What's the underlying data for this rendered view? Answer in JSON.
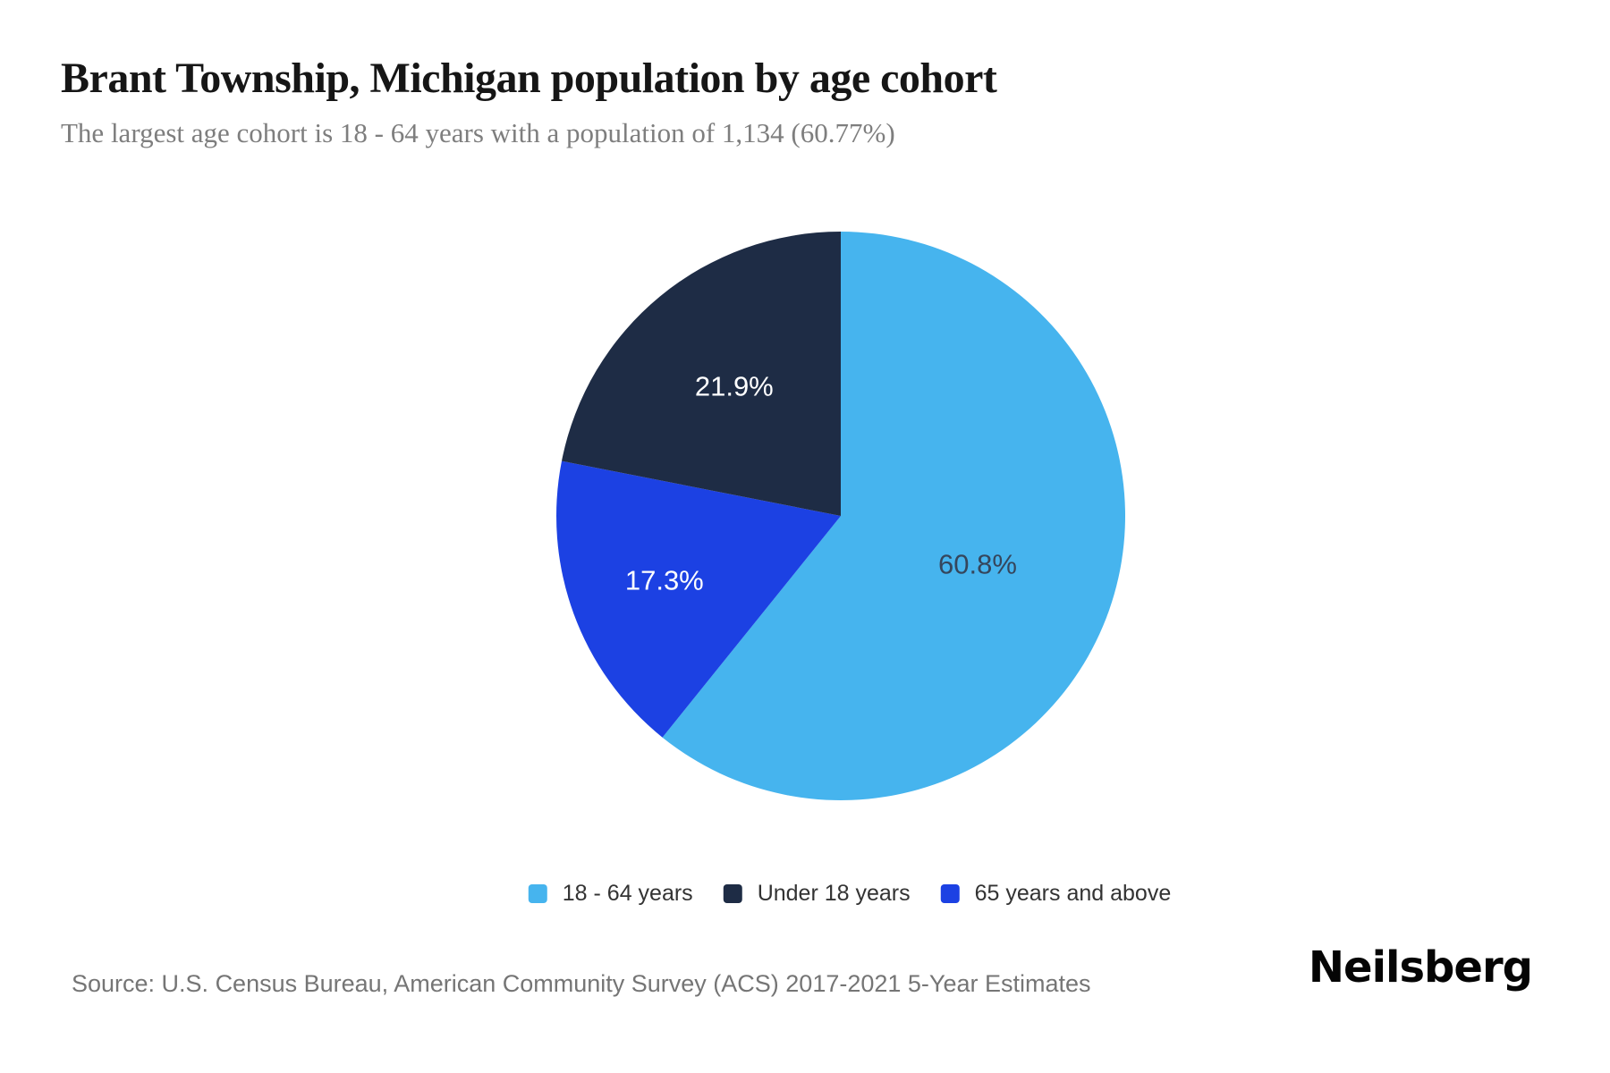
{
  "header": {
    "title": "Brant Township, Michigan population by age cohort",
    "subtitle": "The largest age cohort is 18 - 64 years with a population of 1,134 (60.77%)"
  },
  "chart_data": {
    "type": "pie",
    "title": "Brant Township, Michigan population by age cohort",
    "largest_cohort": {
      "label": "18 - 64 years",
      "population": "1,134",
      "percent": "60.77%"
    },
    "segments": [
      {
        "label": "18 - 64 years",
        "value": 60.77,
        "display": "60.8%",
        "color": "#46b4ee",
        "label_color": "#35465c"
      },
      {
        "label": "Under 18 years",
        "value": 21.9,
        "display": "21.9%",
        "color": "#1e2c45",
        "label_color": "#ffffff"
      },
      {
        "label": "65 years and above",
        "value": 17.3,
        "display": "17.3%",
        "color": "#1c41e3",
        "label_color": "#ffffff"
      }
    ],
    "start_angle_deg": 0,
    "direction": "clockwise",
    "draw_order": [
      0,
      2,
      1
    ],
    "label_radius_frac": [
      0.51,
      0.59,
      0.66
    ],
    "legend_position": "bottom"
  },
  "footer": {
    "source": "Source: U.S. Census Bureau, American Community Survey (ACS) 2017-2021 5-Year Estimates",
    "brand": "Neilsberg"
  }
}
